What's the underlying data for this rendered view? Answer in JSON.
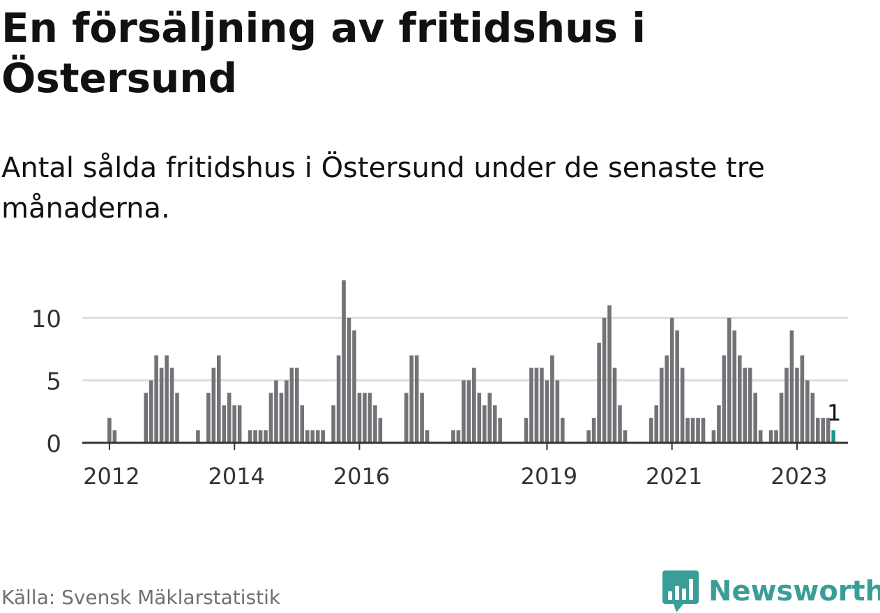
{
  "title": "En försäljning av fritidshus i Östersund",
  "subtitle": "Antal sålda fritidshus i Östersund under de senaste tre månaderna.",
  "source": "Källa: Svensk Mäklarstatistik",
  "brand": {
    "name": "Newsworthy",
    "icon": "newsworthy-logo-icon",
    "color": "#3a9e98"
  },
  "colors": {
    "bar": "#727277",
    "highlight": "#1a9a8e",
    "grid": "#dddddd",
    "axis": "#333333"
  },
  "chart_data": {
    "type": "bar",
    "x_start": "2011-10",
    "x_end": "2023-04",
    "x_ticks": [
      {
        "label": "2012",
        "month": "2012-01"
      },
      {
        "label": "2014",
        "month": "2014-01"
      },
      {
        "label": "2016",
        "month": "2016-01"
      },
      {
        "label": "2019",
        "month": "2019-01"
      },
      {
        "label": "2021",
        "month": "2021-01"
      },
      {
        "label": "2023",
        "month": "2023-01"
      }
    ],
    "y_ticks": [
      0,
      5,
      10
    ],
    "ylim": [
      0,
      13
    ],
    "grid": true,
    "series": [
      {
        "values": [
          0,
          0,
          0,
          2,
          1,
          0,
          0,
          0,
          0,
          0,
          4,
          5,
          7,
          6,
          7,
          6,
          4,
          0,
          0,
          0,
          1,
          0,
          4,
          6,
          7,
          3,
          4,
          3,
          3,
          0,
          1,
          1,
          1,
          1,
          4,
          5,
          4,
          5,
          6,
          6,
          3,
          1,
          1,
          1,
          1,
          0,
          3,
          7,
          13,
          10,
          9,
          4,
          4,
          4,
          3,
          2,
          0,
          0,
          0,
          0,
          4,
          7,
          7,
          4,
          1,
          0,
          0,
          0,
          0,
          1,
          1,
          5,
          5,
          6,
          4,
          3,
          4,
          3,
          2,
          0,
          0,
          0,
          0,
          2,
          6,
          6,
          6,
          5,
          7,
          5,
          2,
          0,
          0,
          0,
          0,
          1,
          2,
          8,
          10,
          11,
          6,
          3,
          1,
          0,
          0,
          0,
          0,
          2,
          3,
          6,
          7,
          10,
          9,
          6,
          2,
          2,
          2,
          2,
          0,
          1,
          3,
          7,
          10,
          9,
          7,
          6,
          6,
          4,
          1,
          0,
          1,
          1,
          4,
          6,
          9,
          6,
          7,
          5,
          4,
          2,
          2,
          2,
          1
        ],
        "highlight_last": true
      }
    ],
    "last_value_label": "1"
  }
}
